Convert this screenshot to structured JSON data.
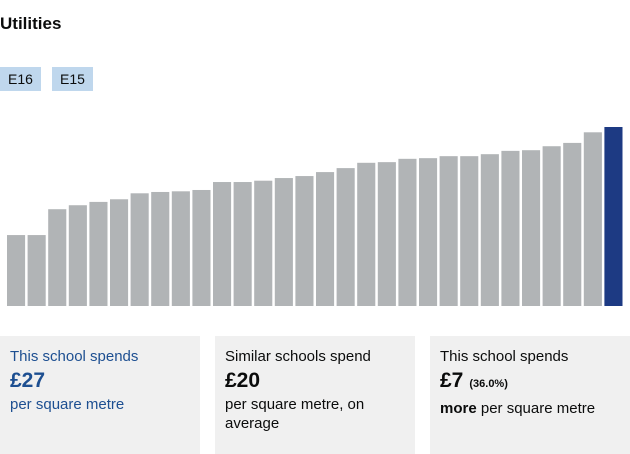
{
  "title": "Utilities",
  "tabs": [
    "E16",
    "E15"
  ],
  "chart_data": {
    "type": "bar",
    "values": [
      10.7,
      10.7,
      14.6,
      15.2,
      15.7,
      16.1,
      17.0,
      17.2,
      17.3,
      17.5,
      18.7,
      18.7,
      18.9,
      19.3,
      19.6,
      20.2,
      20.8,
      21.6,
      21.7,
      22.2,
      22.3,
      22.6,
      22.6,
      22.9,
      23.4,
      23.5,
      24.1,
      24.6,
      26.2,
      27
    ],
    "colors": [
      "#b1b4b6",
      "#b1b4b6",
      "#b1b4b6",
      "#b1b4b6",
      "#b1b4b6",
      "#b1b4b6",
      "#b1b4b6",
      "#b1b4b6",
      "#b1b4b6",
      "#b1b4b6",
      "#b1b4b6",
      "#b1b4b6",
      "#b1b4b6",
      "#b1b4b6",
      "#b1b4b6",
      "#b1b4b6",
      "#b1b4b6",
      "#b1b4b6",
      "#b1b4b6",
      "#b1b4b6",
      "#b1b4b6",
      "#b1b4b6",
      "#b1b4b6",
      "#b1b4b6",
      "#b1b4b6",
      "#b1b4b6",
      "#b1b4b6",
      "#b1b4b6",
      "#b1b4b6",
      "#1d3a83"
    ],
    "ylim": [
      0,
      27
    ]
  },
  "cards": [
    {
      "heading": "This school spends",
      "amount": "£27",
      "unit": "per square metre"
    },
    {
      "heading": "Similar schools spend",
      "amount": "£20",
      "unit": "per square metre, on average"
    },
    {
      "heading": "This school spends",
      "amount": "£7",
      "note": "(36.0%)",
      "emphasis": "more",
      "unit": "per square metre"
    }
  ]
}
